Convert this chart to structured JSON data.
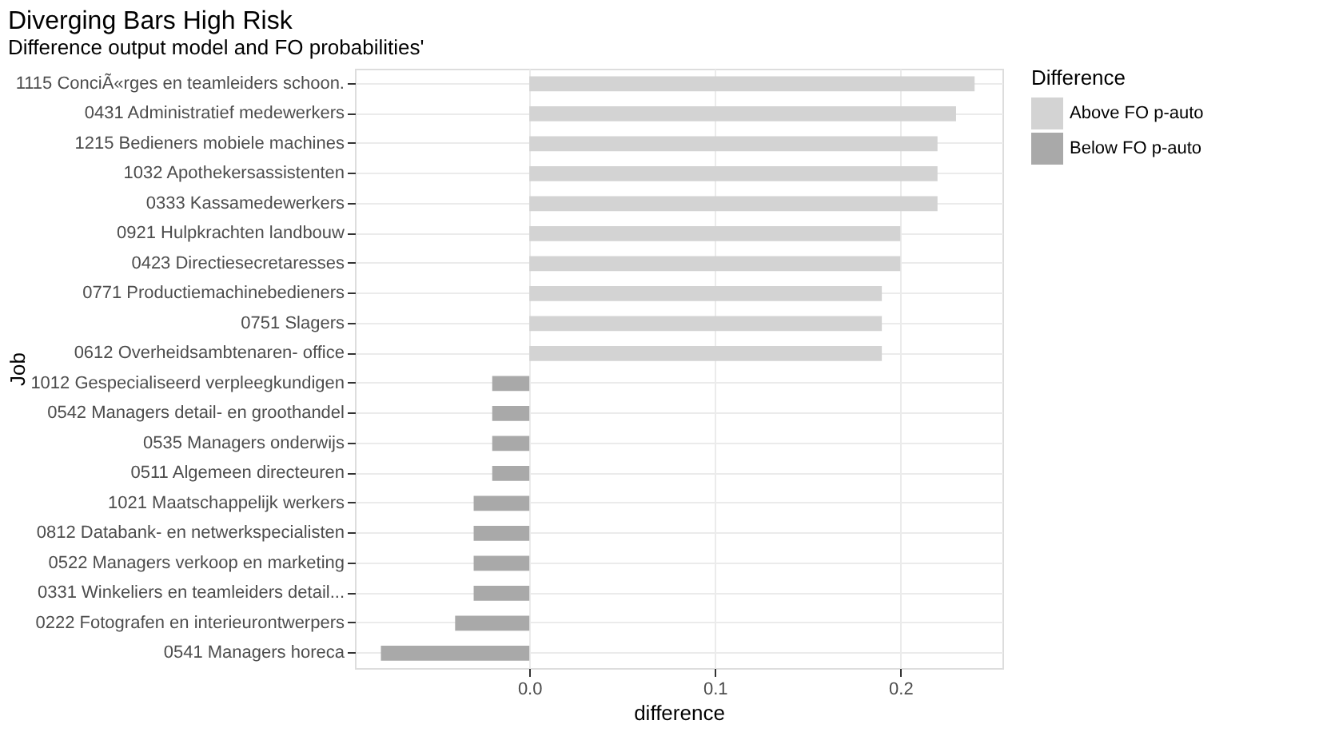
{
  "chart_data": {
    "type": "bar",
    "orientation": "horizontal",
    "title": "Diverging Bars High Risk",
    "subtitle": "Difference output model and FO probabilities'",
    "xlabel": "difference",
    "ylabel": "Job",
    "legend_title": "Difference",
    "categories": [
      "1115 ConciÃ«rges en teamleiders schoon.",
      "0431 Administratief medewerkers",
      "1215 Bedieners mobiele machines",
      "1032 Apothekersassistenten",
      "0333 Kassamedewerkers",
      "0921 Hulpkrachten landbouw",
      "0423 Directiesecretaresses",
      "0771 Productiemachinebedieners",
      "0751 Slagers",
      "0612 Overheidsambtenaren- office",
      "1012 Gespecialiseerd verpleegkundigen",
      "0542 Managers detail- en groothandel",
      "0535 Managers onderwijs",
      "0511 Algemeen directeuren",
      "1021 Maatschappelijk werkers",
      "0812 Databank- en netwerkspecialisten",
      "0522 Managers verkoop en marketing",
      "0331 Winkeliers en teamleiders detail...",
      "0222 Fotografen en interieurontwerpers",
      "0541 Managers horeca"
    ],
    "series": [
      {
        "name": "Above FO p-auto",
        "color": "#d3d3d3",
        "values": [
          0.24,
          0.23,
          0.22,
          0.22,
          0.22,
          0.2,
          0.2,
          0.19,
          0.19,
          0.19,
          null,
          null,
          null,
          null,
          null,
          null,
          null,
          null,
          null,
          null
        ]
      },
      {
        "name": "Below FO p-auto",
        "color": "#a9a9a9",
        "values": [
          null,
          null,
          null,
          null,
          null,
          null,
          null,
          null,
          null,
          null,
          -0.02,
          -0.02,
          -0.02,
          -0.02,
          -0.03,
          -0.03,
          -0.03,
          -0.03,
          -0.04,
          -0.08
        ]
      }
    ],
    "xlim": [
      -0.094,
      0.255
    ],
    "xticks": [
      {
        "value": 0,
        "label": "0.0"
      },
      0.1,
      0.2
    ],
    "grid": true,
    "legend": "right"
  }
}
